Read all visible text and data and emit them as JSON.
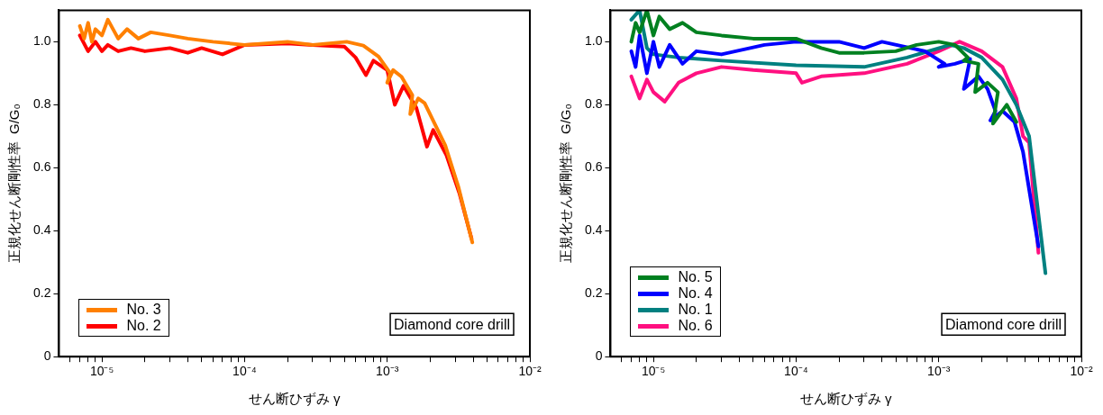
{
  "chart_data": [
    {
      "type": "line",
      "xlabel": "せん断ひずみ γ",
      "ylabel": "正規化せん断剛性率  G/G₀",
      "log": "x",
      "legend": "bottom left",
      "annotations": [
        "Diamond core drill"
      ],
      "xlim": [
        5e-06,
        0.01
      ],
      "ylim": [
        0,
        1.1
      ],
      "xticks": [
        {
          "value": 6e-06,
          "label": null
        },
        {
          "value": 7e-06,
          "label": null
        },
        {
          "value": 8e-06,
          "label": null
        },
        {
          "value": 9e-06,
          "label": null
        },
        {
          "value": 1e-05,
          "label": "10⁻⁵"
        },
        {
          "value": 2e-05,
          "label": null
        },
        {
          "value": 3e-05,
          "label": null
        },
        {
          "value": 4e-05,
          "label": null
        },
        {
          "value": 5e-05,
          "label": null
        },
        {
          "value": 6e-05,
          "label": null
        },
        {
          "value": 7e-05,
          "label": null
        },
        {
          "value": 8e-05,
          "label": null
        },
        {
          "value": 9e-05,
          "label": null
        },
        {
          "value": 0.0001,
          "label": "10⁻⁴"
        },
        {
          "value": 0.0002,
          "label": null
        },
        {
          "value": 0.0003,
          "label": null
        },
        {
          "value": 0.0004,
          "label": null
        },
        {
          "value": 0.0005,
          "label": null
        },
        {
          "value": 0.0006,
          "label": null
        },
        {
          "value": 0.0007,
          "label": null
        },
        {
          "value": 0.0008,
          "label": null
        },
        {
          "value": 0.0009,
          "label": null
        },
        {
          "value": 0.001,
          "label": "10⁻³"
        },
        {
          "value": 0.002,
          "label": null
        },
        {
          "value": 0.003,
          "label": null
        },
        {
          "value": 0.004,
          "label": null
        },
        {
          "value": 0.005,
          "label": null
        },
        {
          "value": 0.006,
          "label": null
        },
        {
          "value": 0.007,
          "label": null
        },
        {
          "value": 0.008,
          "label": null
        },
        {
          "value": 0.009,
          "label": null
        },
        {
          "value": 0.01,
          "label": "10⁻²"
        }
      ],
      "yticks": [
        0,
        0.2,
        0.4,
        0.6,
        0.8,
        {
          "value": 1,
          "label": "1.0"
        }
      ],
      "series": [
        {
          "name": "No. 3",
          "color": "#ff8000",
          "x": [
            7e-06,
            7.5e-06,
            8e-06,
            8.5e-06,
            9e-06,
            1e-05,
            1.1e-05,
            1.3e-05,
            1.5e-05,
            1.8e-05,
            2.2e-05,
            3e-05,
            4e-05,
            6e-05,
            0.0001,
            0.0002,
            0.0003,
            0.00052,
            0.00068,
            0.00087,
            0.00105,
            0.001,
            0.0011,
            0.00126,
            0.0015,
            0.00145,
            0.00165,
            0.00183,
            0.00255,
            0.00315,
            0.00395
          ],
          "values": [
            1.05,
            1.01,
            1.06,
            1.0,
            1.04,
            1.02,
            1.07,
            1.01,
            1.04,
            1.01,
            1.03,
            1.02,
            1.01,
            1.0,
            0.99,
            1.0,
            0.99,
            1.0,
            0.988,
            0.953,
            0.9,
            0.87,
            0.91,
            0.889,
            0.83,
            0.77,
            0.82,
            0.805,
            0.671,
            0.54,
            0.363
          ]
        },
        {
          "name": "No. 2",
          "color": "#ff0000",
          "x": [
            7e-06,
            8e-06,
            9e-06,
            1e-05,
            1.1e-05,
            1.3e-05,
            1.6e-05,
            2e-05,
            3e-05,
            4e-05,
            5e-05,
            7e-05,
            0.0001,
            0.0002,
            0.0003,
            0.0005,
            0.0006,
            0.00071,
            0.0008,
            0.001,
            0.00113,
            0.0013,
            0.0016,
            0.0019,
            0.0021,
            0.0026,
            0.0032,
            0.0039
          ],
          "values": [
            1.02,
            0.97,
            1.0,
            0.97,
            0.99,
            0.97,
            0.98,
            0.97,
            0.98,
            0.965,
            0.98,
            0.96,
            0.99,
            0.995,
            0.99,
            0.985,
            0.95,
            0.894,
            0.94,
            0.91,
            0.8,
            0.86,
            0.79,
            0.667,
            0.72,
            0.64,
            0.52,
            0.375
          ]
        }
      ]
    },
    {
      "type": "line",
      "xlabel": "せん断ひずみ γ",
      "ylabel": "正規化せん断剛性率  G/G₀",
      "log": "x",
      "legend": "bottom left",
      "annotations": [
        "Diamond core drill"
      ],
      "xlim": [
        5e-06,
        0.01
      ],
      "ylim": [
        0,
        1.1
      ],
      "xticks": [
        {
          "value": 6e-06,
          "label": null
        },
        {
          "value": 7e-06,
          "label": null
        },
        {
          "value": 8e-06,
          "label": null
        },
        {
          "value": 9e-06,
          "label": null
        },
        {
          "value": 1e-05,
          "label": "10⁻⁵"
        },
        {
          "value": 2e-05,
          "label": null
        },
        {
          "value": 3e-05,
          "label": null
        },
        {
          "value": 4e-05,
          "label": null
        },
        {
          "value": 5e-05,
          "label": null
        },
        {
          "value": 6e-05,
          "label": null
        },
        {
          "value": 7e-05,
          "label": null
        },
        {
          "value": 8e-05,
          "label": null
        },
        {
          "value": 9e-05,
          "label": null
        },
        {
          "value": 0.0001,
          "label": "10⁻⁴"
        },
        {
          "value": 0.0002,
          "label": null
        },
        {
          "value": 0.0003,
          "label": null
        },
        {
          "value": 0.0004,
          "label": null
        },
        {
          "value": 0.0005,
          "label": null
        },
        {
          "value": 0.0006,
          "label": null
        },
        {
          "value": 0.0007,
          "label": null
        },
        {
          "value": 0.0008,
          "label": null
        },
        {
          "value": 0.0009,
          "label": null
        },
        {
          "value": 0.001,
          "label": "10⁻³"
        },
        {
          "value": 0.002,
          "label": null
        },
        {
          "value": 0.003,
          "label": null
        },
        {
          "value": 0.004,
          "label": null
        },
        {
          "value": 0.005,
          "label": null
        },
        {
          "value": 0.006,
          "label": null
        },
        {
          "value": 0.007,
          "label": null
        },
        {
          "value": 0.008,
          "label": null
        },
        {
          "value": 0.009,
          "label": null
        },
        {
          "value": 0.01,
          "label": "10⁻²"
        }
      ],
      "yticks": [
        0,
        0.2,
        0.4,
        0.6,
        0.8,
        {
          "value": 1,
          "label": "1.0"
        }
      ],
      "series": [
        {
          "name": "No. 5",
          "color": "#008020",
          "x": [
            7e-06,
            7.5e-06,
            8e-06,
            9e-06,
            1e-05,
            1.1e-05,
            1.3e-05,
            1.6e-05,
            2e-05,
            3e-05,
            5e-05,
            0.0001,
            0.00015,
            0.0002,
            0.0003,
            0.0005,
            0.0007,
            0.001,
            0.0013,
            0.0016,
            0.0015,
            0.0019,
            0.0018,
            0.0022,
            0.0026,
            0.0024,
            0.003,
            0.0035
          ],
          "values": [
            1.0,
            1.06,
            1.03,
            1.1,
            1.02,
            1.08,
            1.04,
            1.06,
            1.03,
            1.02,
            1.01,
            1.01,
            0.98,
            0.965,
            0.965,
            0.97,
            0.99,
            1.0,
            0.99,
            0.95,
            0.94,
            0.93,
            0.84,
            0.87,
            0.84,
            0.74,
            0.8,
            0.745
          ]
        },
        {
          "name": "No. 4",
          "color": "#0000ff",
          "x": [
            7e-06,
            7.5e-06,
            8e-06,
            9e-06,
            1e-05,
            1.1e-05,
            1.3e-05,
            1.6e-05,
            2e-05,
            3e-05,
            6e-05,
            0.0001,
            0.0002,
            0.0003,
            0.0004,
            0.0008,
            0.0011,
            0.001,
            0.0013,
            0.00166,
            0.0015,
            0.0019,
            0.0022,
            0.0025,
            0.0023,
            0.0028,
            0.0034,
            0.0039,
            0.005
          ],
          "values": [
            0.97,
            0.92,
            1.02,
            0.9,
            1.0,
            0.92,
            0.99,
            0.93,
            0.97,
            0.96,
            0.99,
            1.0,
            1.0,
            0.98,
            1.0,
            0.97,
            0.93,
            0.92,
            0.93,
            0.945,
            0.85,
            0.89,
            0.85,
            0.78,
            0.75,
            0.78,
            0.745,
            0.65,
            0.35
          ]
        },
        {
          "name": "No. 1",
          "color": "#008080",
          "x": [
            7e-06,
            8e-06,
            9e-06,
            1e-05,
            1.5e-05,
            3e-05,
            0.0001,
            0.0003,
            0.0006,
            0.0012,
            0.0015,
            0.002,
            0.0028,
            0.0035,
            0.0043,
            0.0056
          ],
          "values": [
            1.07,
            1.1,
            0.98,
            0.96,
            0.95,
            0.94,
            0.925,
            0.92,
            0.95,
            0.99,
            0.98,
            0.95,
            0.88,
            0.8,
            0.7,
            0.265
          ]
        },
        {
          "name": "No. 6",
          "color": "#ff1080",
          "x": [
            7e-06,
            8e-06,
            9e-06,
            1e-05,
            1.2e-05,
            1.5e-05,
            2e-05,
            3e-05,
            5e-05,
            0.0001,
            0.00011,
            0.00015,
            0.0003,
            0.0006,
            0.001,
            0.0014,
            0.002,
            0.0028,
            0.0035,
            0.0039,
            0.0043,
            0.005
          ],
          "values": [
            0.89,
            0.82,
            0.88,
            0.84,
            0.81,
            0.87,
            0.9,
            0.92,
            0.91,
            0.9,
            0.87,
            0.89,
            0.9,
            0.93,
            0.97,
            1.0,
            0.97,
            0.92,
            0.82,
            0.7,
            0.68,
            0.33
          ]
        }
      ]
    }
  ]
}
